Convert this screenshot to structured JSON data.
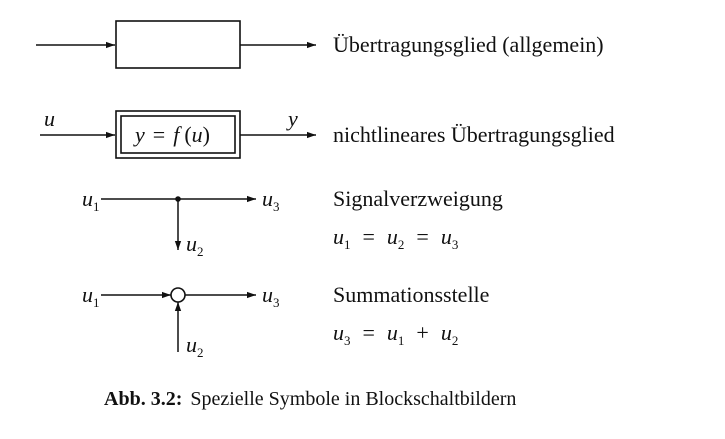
{
  "rows": {
    "general": {
      "label": "Übertragungsglied (allgemein)"
    },
    "nonlinear": {
      "input": "u",
      "output": "y",
      "expr": {
        "y": "y",
        "eq": "=",
        "f": "f",
        "open": "(",
        "u": "u",
        "close": ")"
      },
      "label": "nichtlineares Übertragungsglied"
    },
    "branch": {
      "in_var": "u",
      "in_sub": "1",
      "out_var": "u",
      "out_sub": "3",
      "down_var": "u",
      "down_sub": "2",
      "label": "Signalverzweigung",
      "eq": {
        "a": "u",
        "a_sub": "1",
        "op1": "=",
        "b": "u",
        "b_sub": "2",
        "op2": "=",
        "c": "u",
        "c_sub": "3"
      }
    },
    "sum": {
      "in_var": "u",
      "in_sub": "1",
      "out_var": "u",
      "out_sub": "3",
      "up_var": "u",
      "up_sub": "2",
      "label": "Summationsstelle",
      "eq": {
        "a": "u",
        "a_sub": "3",
        "op1": "=",
        "b": "u",
        "b_sub": "1",
        "op2": "+",
        "c": "u",
        "c_sub": "2"
      }
    }
  },
  "caption": {
    "label": "Abb. 3.2:",
    "text": "Spezielle Symbole in Blockschaltbildern"
  }
}
